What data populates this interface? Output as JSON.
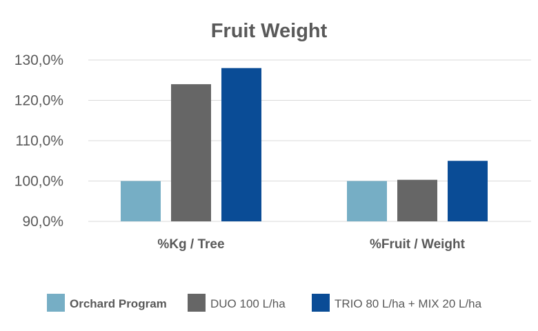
{
  "chart_data": {
    "type": "bar",
    "title": "Fruit Weight",
    "xlabel": "",
    "ylabel": "",
    "categories": [
      "%Kg / Tree",
      "%Fruit / Weight"
    ],
    "series": [
      {
        "name": "Orchard Program",
        "values": [
          100.0,
          100.0
        ],
        "color": "#76AEC5"
      },
      {
        "name": "DUO 100 L/ha",
        "values": [
          124.0,
          100.3
        ],
        "color": "#666666"
      },
      {
        "name": "TRIO 80 L/ha + MIX 20 L/ha",
        "values": [
          128.0,
          105.0
        ],
        "color": "#0A4C96"
      }
    ],
    "ylim": [
      90,
      130
    ],
    "yticks": [
      90,
      100,
      110,
      120,
      130
    ],
    "ytick_labels": [
      "90,0%",
      "100,0%",
      "110,0%",
      "120,0%",
      "130,0%"
    ],
    "grid": true,
    "legend_position": "bottom"
  }
}
